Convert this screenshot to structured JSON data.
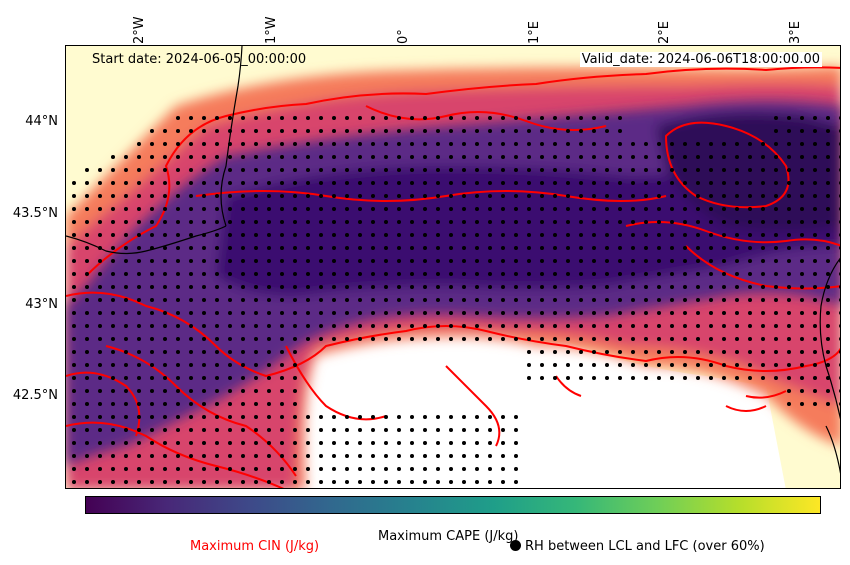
{
  "map": {
    "start_date": "Start date: 2024-06-05_00:00:00",
    "valid_date": "Valid_date: 2024-06-06T18:00:00.00",
    "lon_ticks": [
      "2°W",
      "1°W",
      "0°",
      "1°E",
      "2°E",
      "3°E"
    ],
    "lat_ticks": [
      "44°N",
      "43.5°N",
      "43°N",
      "42.5°N"
    ],
    "colormap_cape": "viridis",
    "colormap_fill": "magma_r",
    "cin_contour_color": "#ff0000",
    "rh_marker_color": "#000000",
    "gridlines": true
  },
  "legend": {
    "cape_label": "Maximum CAPE (J/kg)",
    "cin_label": "Maximum CIN (J/kg)",
    "rh_label": "RH between LCL and LFC (over 60%)"
  }
}
